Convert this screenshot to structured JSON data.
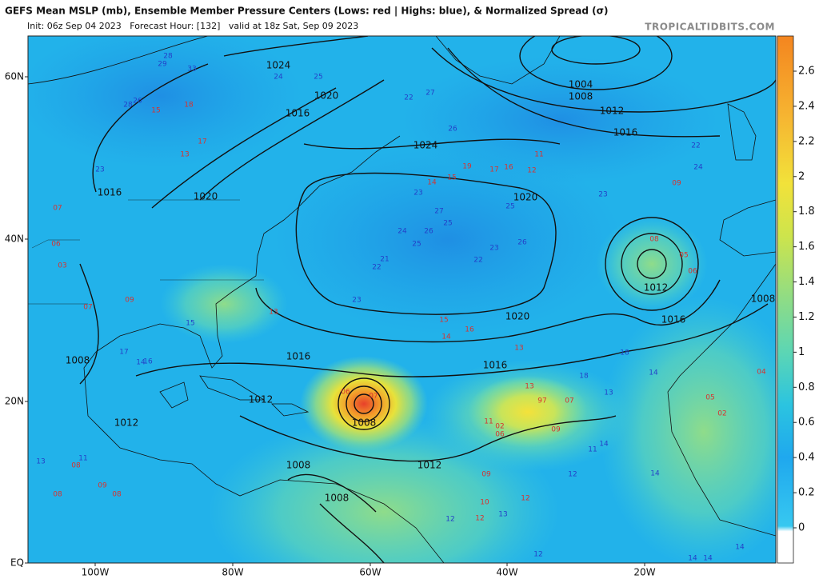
{
  "header": {
    "title": "GEFS Mean MSLP (mb), Ensemble Member Pressure Centers (Lows: red | Highs: blue), & Normalized Spread (σ)",
    "subtitle": "Init: 06z Sep 04 2023   Forecast Hour: [132]   valid at 18z Sat, Sep 09 2023",
    "credit": "TROPICALTIDBITS.COM"
  },
  "axes": {
    "lon_labels": [
      "100W",
      "80W",
      "60W",
      "40W",
      "20W"
    ],
    "lat_labels": [
      "60N",
      "40N",
      "20N",
      "EQ"
    ]
  },
  "colorbar": {
    "ticks": [
      0,
      0.2,
      0.4,
      0.6,
      0.8,
      1,
      1.2,
      1.4,
      1.6,
      1.8,
      2,
      2.2,
      2.4,
      2.6
    ]
  },
  "isobars": {
    "labels": [
      1024,
      1020,
      1016,
      1024,
      1016,
      1020,
      1004,
      1008,
      1012,
      1016,
      1020,
      1020,
      1016,
      1016,
      1012,
      1016,
      1008,
      1008,
      1012,
      1012,
      1008,
      1012,
      1008,
      1008
    ]
  },
  "members": {
    "lows": [
      "07",
      "06",
      "03",
      "09",
      "07",
      "08",
      "09",
      "08",
      "06",
      "07",
      "02",
      "06",
      "97",
      "07",
      "13",
      "11",
      "09",
      "12",
      "17",
      "16",
      "15",
      "14",
      "19",
      "11",
      "09",
      "05",
      "06",
      "08",
      "13",
      "15",
      "16",
      "14",
      "13",
      "04",
      "05",
      "02",
      "10",
      "12",
      "09",
      "08",
      "12",
      "13",
      "15",
      "18",
      "17"
    ],
    "highs": [
      "29",
      "28",
      "33",
      "26",
      "28",
      "23",
      "24",
      "25",
      "27",
      "22",
      "26",
      "23",
      "27",
      "25",
      "24",
      "26",
      "25",
      "22",
      "21",
      "23",
      "22",
      "23",
      "26",
      "25",
      "18",
      "13",
      "14",
      "11",
      "12",
      "14",
      "14",
      "18",
      "22",
      "24",
      "23",
      "16",
      "14",
      "15",
      "17",
      "13",
      "11",
      "13",
      "12",
      "14",
      "14",
      "14",
      "12"
    ]
  }
}
